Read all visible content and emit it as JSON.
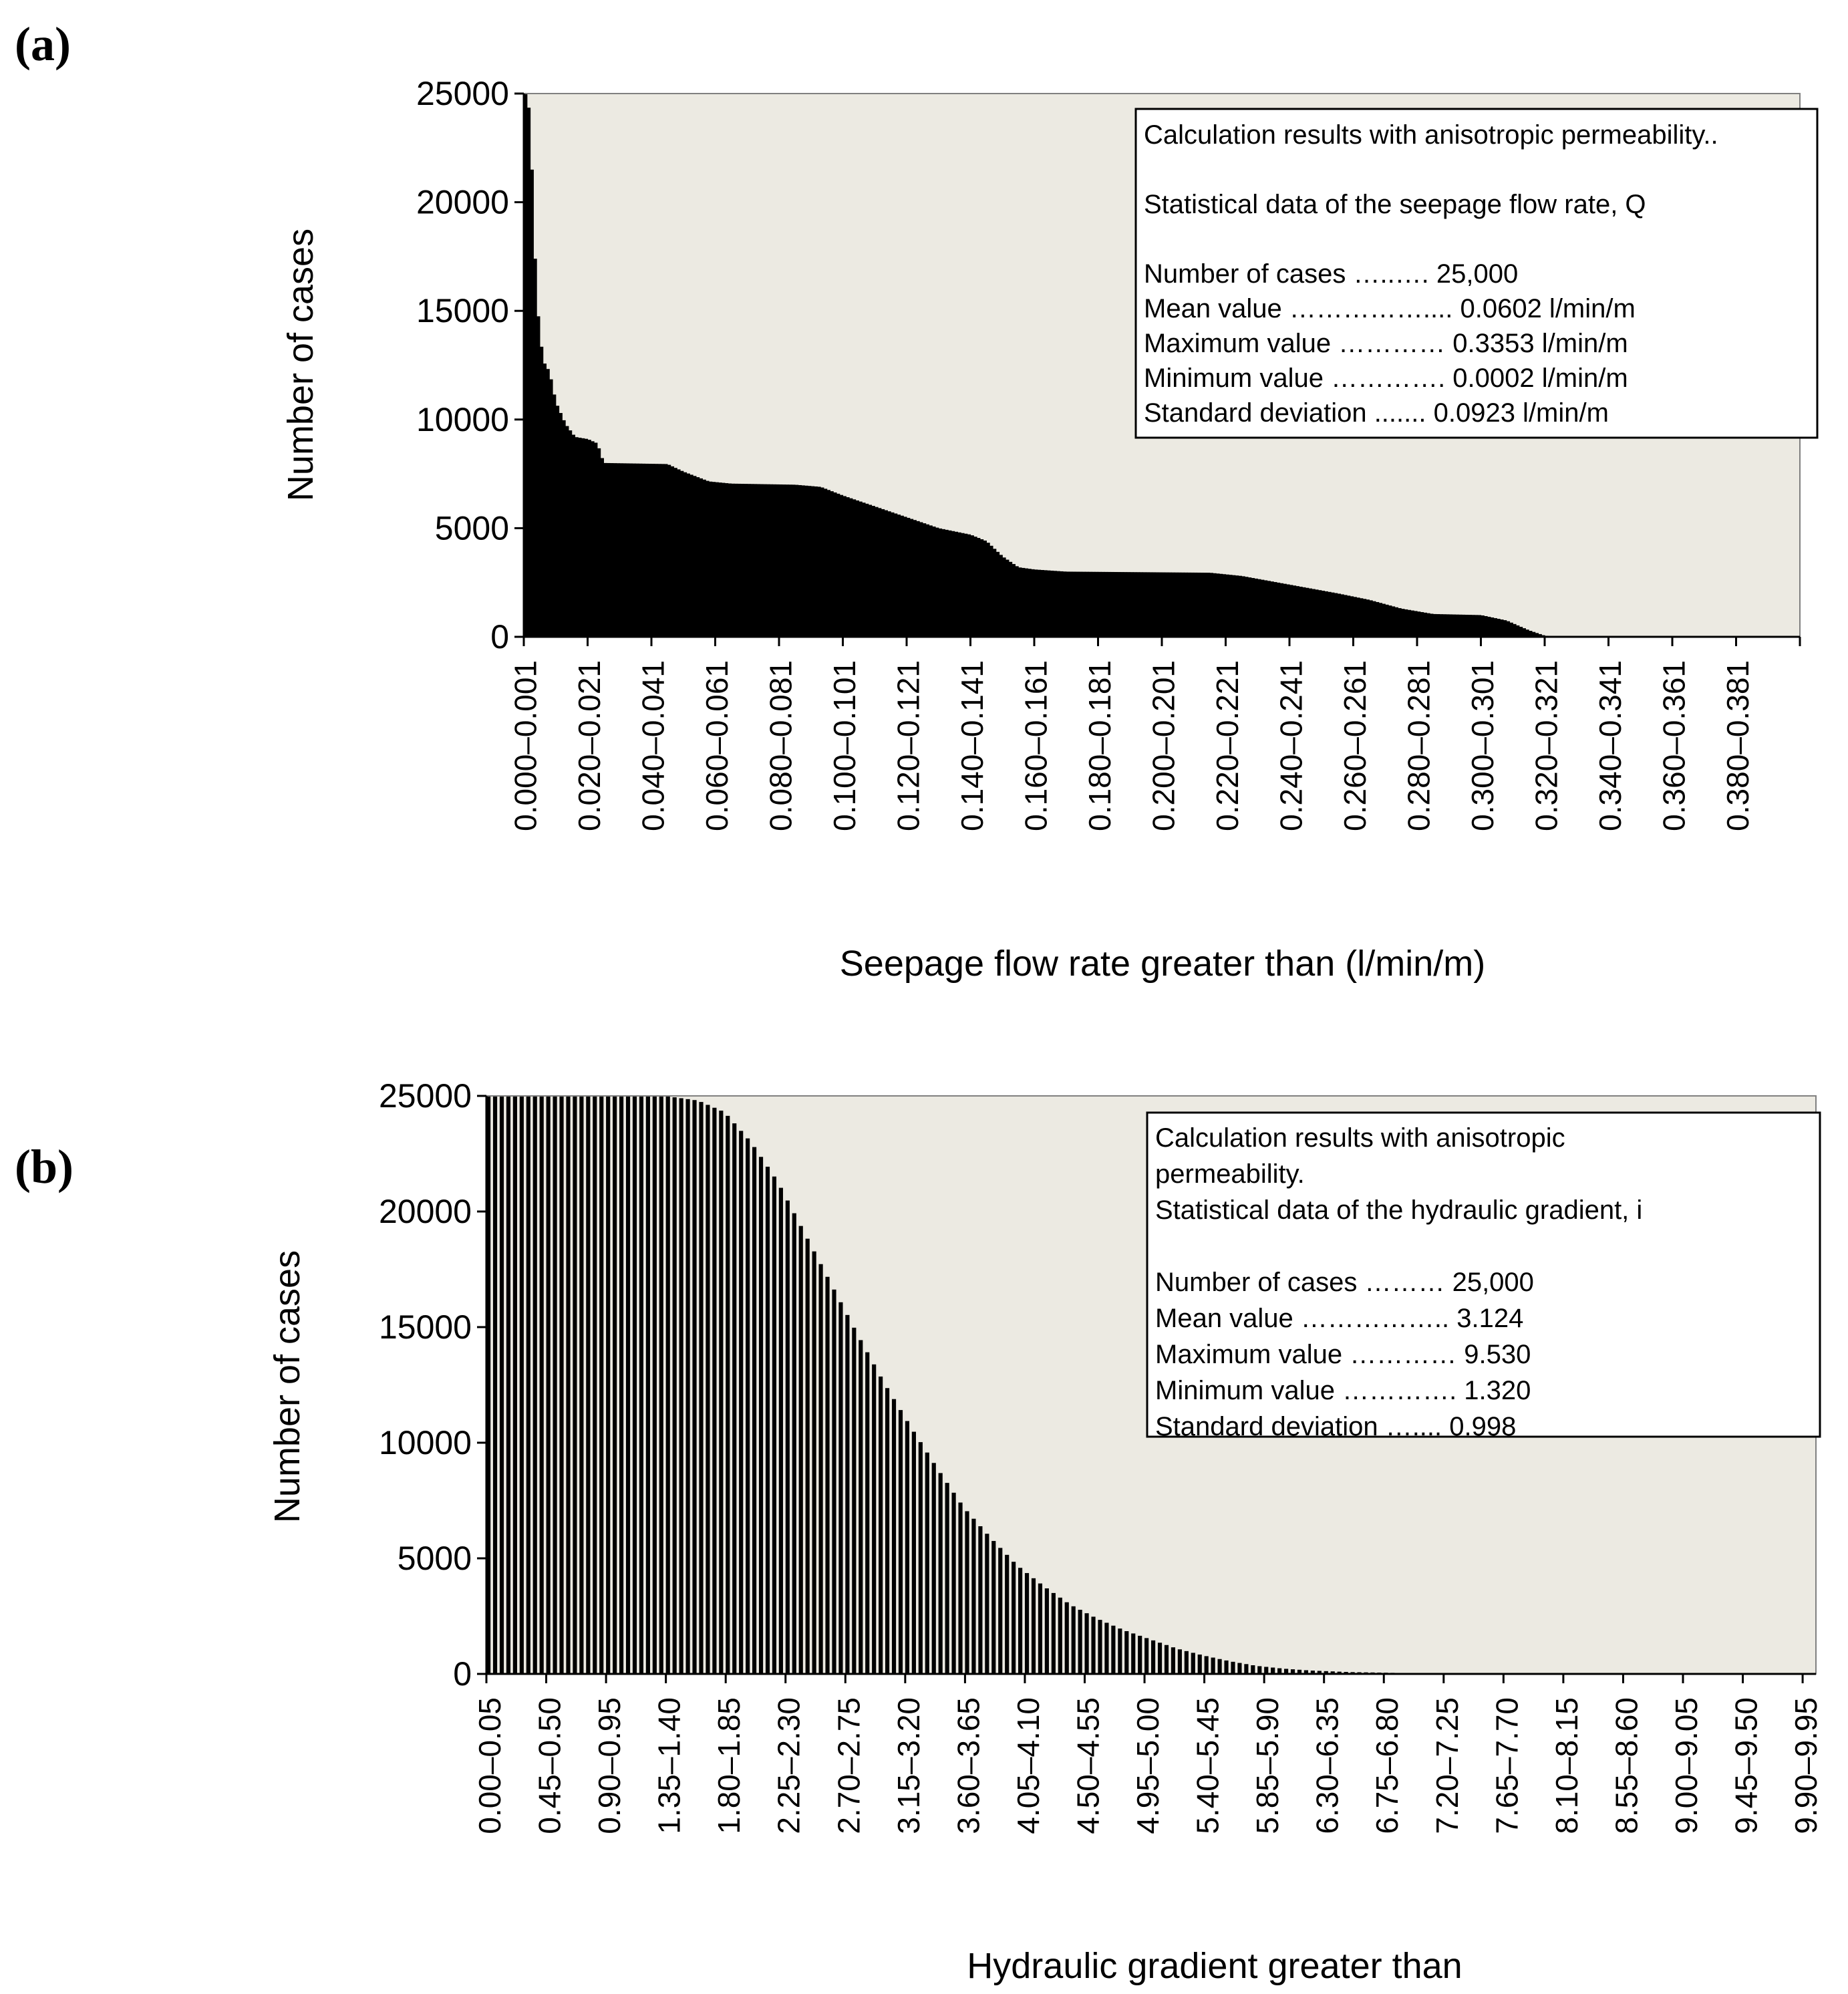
{
  "chart_data": [
    {
      "panel_label": "(a)",
      "type": "bar",
      "title": "",
      "xlabel": "Seepage flow rate greater than (l/min/m)",
      "ylabel": "Number of cases",
      "ylim": [
        0,
        25000
      ],
      "yticks": [
        "25000",
        "20000",
        "15000",
        "10000",
        "5000",
        "0"
      ],
      "bin_start": 0.0,
      "bin_width": 0.001,
      "bin_count": 400,
      "xtick_labels": [
        "0.000–0.001",
        "0.020–0.021",
        "0.040–0.041",
        "0.060–0.061",
        "0.080–0.081",
        "0.100–0.101",
        "0.120–0.121",
        "0.140–0.141",
        "0.160–0.161",
        "0.180–0.181",
        "0.200–0.201",
        "0.220–0.221",
        "0.240–0.241",
        "0.260–0.261",
        "0.280–0.281",
        "0.300–0.301",
        "0.320–0.321",
        "0.340–0.341",
        "0.360–0.361",
        "0.380–0.381"
      ],
      "curve_points": [
        [
          0.0,
          25000
        ],
        [
          0.001,
          25000
        ],
        [
          0.002,
          23700
        ],
        [
          0.003,
          19300
        ],
        [
          0.004,
          15500
        ],
        [
          0.005,
          14000
        ],
        [
          0.006,
          12700
        ],
        [
          0.008,
          12200
        ],
        [
          0.01,
          10800
        ],
        [
          0.013,
          9800
        ],
        [
          0.016,
          9200
        ],
        [
          0.02,
          9100
        ],
        [
          0.023,
          8900
        ],
        [
          0.025,
          8000
        ],
        [
          0.045,
          7950
        ],
        [
          0.05,
          7600
        ],
        [
          0.058,
          7150
        ],
        [
          0.065,
          7050
        ],
        [
          0.085,
          7000
        ],
        [
          0.093,
          6900
        ],
        [
          0.1,
          6500
        ],
        [
          0.11,
          6000
        ],
        [
          0.12,
          5500
        ],
        [
          0.13,
          5000
        ],
        [
          0.14,
          4700
        ],
        [
          0.145,
          4400
        ],
        [
          0.15,
          3700
        ],
        [
          0.155,
          3200
        ],
        [
          0.16,
          3100
        ],
        [
          0.17,
          3000
        ],
        [
          0.215,
          2950
        ],
        [
          0.225,
          2800
        ],
        [
          0.24,
          2400
        ],
        [
          0.255,
          2000
        ],
        [
          0.265,
          1700
        ],
        [
          0.275,
          1300
        ],
        [
          0.285,
          1050
        ],
        [
          0.3,
          1000
        ],
        [
          0.308,
          750
        ],
        [
          0.315,
          300
        ],
        [
          0.32,
          50
        ],
        [
          0.33,
          10
        ],
        [
          0.34,
          0
        ],
        [
          0.4,
          0
        ]
      ],
      "legend": {
        "lines": [
          "Calculation results with anisotropic permeability..",
          "",
          "Statistical data of the seepage flow rate, Q",
          "",
          "Number of cases …..…. 25,000",
          "Mean value …………….... 0.0602 l/min/m",
          "Maximum value ………… 0.3353 l/min/m",
          "Minimum value …………. 0.0002 l/min/m",
          "Standard deviation ....... 0.0923 l/min/m"
        ]
      },
      "colors": {
        "plot_bg": "#eceae2",
        "bars": "#000000",
        "bar_gap": "#ffffff"
      }
    },
    {
      "panel_label": "(b)",
      "type": "bar",
      "title": "",
      "xlabel": "Hydraulic gradient greater than",
      "ylabel": "Number of cases",
      "ylim": [
        0,
        25000
      ],
      "yticks": [
        "25000",
        "20000",
        "15000",
        "10000",
        "5000",
        "0"
      ],
      "bin_start": 0.0,
      "bin_width": 0.05,
      "bin_count": 200,
      "xtick_labels": [
        "0.00–0.05",
        "0.45–0.50",
        "0.90–0.95",
        "1.35–1.40",
        "1.80–1.85",
        "2.25–2.30",
        "2.70–2.75",
        "3.15–3.20",
        "3.60–3.65",
        "4.05–4.10",
        "4.50–4.55",
        "4.95–5.00",
        "5.40–5.45",
        "5.85–5.90",
        "6.30–6.35",
        "6.75–6.80",
        "7.20–7.25",
        "7.65–7.70",
        "8.10–8.15",
        "8.55–8.60",
        "9.00–9.05",
        "9.45–9.50",
        "9.90–9.95"
      ],
      "curve_points": [
        [
          0.0,
          25000
        ],
        [
          1.35,
          25000
        ],
        [
          1.6,
          24800
        ],
        [
          1.8,
          24300
        ],
        [
          2.0,
          23000
        ],
        [
          2.2,
          21300
        ],
        [
          2.4,
          19100
        ],
        [
          2.6,
          16900
        ],
        [
          2.8,
          14700
        ],
        [
          3.0,
          12600
        ],
        [
          3.2,
          10700
        ],
        [
          3.4,
          8900
        ],
        [
          3.6,
          7200
        ],
        [
          3.8,
          5900
        ],
        [
          4.0,
          4700
        ],
        [
          4.2,
          3800
        ],
        [
          4.4,
          3000
        ],
        [
          4.6,
          2400
        ],
        [
          4.8,
          1900
        ],
        [
          5.0,
          1500
        ],
        [
          5.2,
          1100
        ],
        [
          5.4,
          800
        ],
        [
          5.6,
          550
        ],
        [
          5.8,
          350
        ],
        [
          6.0,
          230
        ],
        [
          6.2,
          150
        ],
        [
          6.5,
          80
        ],
        [
          7.0,
          30
        ],
        [
          7.5,
          15
        ],
        [
          8.0,
          8
        ],
        [
          9.0,
          3
        ],
        [
          9.53,
          1
        ],
        [
          9.55,
          0
        ],
        [
          10.0,
          0
        ]
      ],
      "legend": {
        "lines": [
          "Calculation results with anisotropic",
          "permeability.",
          "Statistical data of the hydraulic gradient, i",
          "",
          "Number of cases ……… 25,000",
          "Mean value …………….. 3.124",
          "Maximum value ………… 9.530",
          "Minimum value …………. 1.320",
          "Standard deviation ….... 0.998"
        ]
      },
      "colors": {
        "plot_bg": "#eceae2",
        "bars": "#000000",
        "bar_gap": "#ffffff"
      }
    }
  ]
}
